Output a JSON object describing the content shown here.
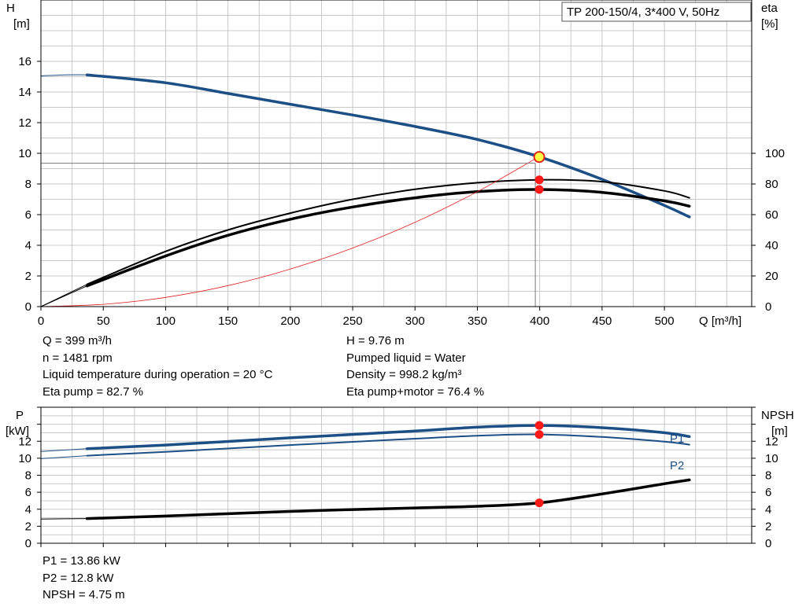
{
  "chart_data": [
    {
      "type": "line",
      "title": "TP 200-150/4, 3*400 V, 50Hz",
      "xlabel": "Q [m³/h]",
      "ylabel_left": [
        "H",
        "[m]"
      ],
      "ylabel_right": [
        "eta",
        "[%]"
      ],
      "xlim": [
        0,
        570
      ],
      "ylim": [
        0,
        20
      ],
      "ylim_right": [
        0,
        200
      ],
      "x_ticks": [
        0,
        50,
        100,
        150,
        200,
        250,
        300,
        350,
        400,
        450,
        500
      ],
      "y_ticks": [
        0,
        2,
        4,
        6,
        8,
        10,
        12,
        14,
        16
      ],
      "y_ticks_right": [
        0,
        20,
        40,
        60,
        80,
        100
      ],
      "grid": true,
      "series": [
        {
          "key": "H",
          "color": "#1c4f86",
          "axis": "left",
          "x": [
            0,
            20,
            37,
            100,
            150,
            200,
            250,
            300,
            350,
            400,
            450,
            500,
            520
          ],
          "values": [
            15.05,
            15.12,
            15.12,
            14.6,
            13.9,
            13.2,
            12.5,
            11.75,
            10.9,
            9.76,
            8.3,
            6.6,
            5.85
          ]
        },
        {
          "key": "eta_pump",
          "color": "#000000",
          "axis": "right",
          "x": [
            0,
            37,
            100,
            150,
            200,
            250,
            300,
            350,
            400,
            450,
            500,
            520
          ],
          "values": [
            0,
            14.5,
            36,
            50,
            61,
            70,
            76.5,
            80.8,
            82.7,
            81.5,
            75.5,
            71
          ]
        },
        {
          "key": "eta_total",
          "color": "#000000",
          "axis": "right",
          "x": [
            0,
            37,
            100,
            150,
            200,
            250,
            300,
            350,
            400,
            450,
            500,
            520
          ],
          "values": [
            0,
            13.5,
            33,
            46.5,
            57,
            65,
            71,
            75,
            76.4,
            74.5,
            69,
            65.5
          ]
        },
        {
          "key": "system",
          "color": "#e02020",
          "axis": "left",
          "x": [
            0,
            50,
            100,
            150,
            200,
            250,
            300,
            350,
            399
          ],
          "values": [
            0,
            0.15,
            0.6,
            1.37,
            2.45,
            3.82,
            5.5,
            7.5,
            9.76
          ]
        }
      ],
      "operating_point": {
        "q": 399,
        "h": 9.76,
        "eta_pump": 82.7,
        "eta_total": 76.4
      }
    },
    {
      "type": "line",
      "ylabel_left": [
        "P",
        "[kW]"
      ],
      "ylabel_right": [
        "NPSH",
        "[m]"
      ],
      "xlim": [
        0,
        570
      ],
      "ylim": [
        0,
        16
      ],
      "y_ticks": [
        0,
        2,
        4,
        6,
        8,
        10,
        12
      ],
      "y_ticks_right": [
        0,
        2,
        4,
        6,
        8,
        10,
        12
      ],
      "grid": true,
      "series": [
        {
          "key": "P1",
          "name": "P1",
          "color": "#1c4f86",
          "x": [
            0,
            37,
            100,
            200,
            300,
            350,
            400,
            450,
            500,
            520
          ],
          "values": [
            10.8,
            11.12,
            11.55,
            12.4,
            13.2,
            13.65,
            13.86,
            13.6,
            13.0,
            12.55
          ]
        },
        {
          "key": "P2",
          "name": "P2",
          "color": "#1c4f86",
          "x": [
            0,
            37,
            100,
            200,
            300,
            350,
            400,
            450,
            500,
            520
          ],
          "values": [
            9.95,
            10.3,
            10.75,
            11.55,
            12.3,
            12.65,
            12.8,
            12.5,
            11.95,
            11.6
          ]
        },
        {
          "key": "NPSH",
          "color": "#000000",
          "x": [
            0,
            37,
            100,
            200,
            300,
            350,
            400,
            450,
            500,
            520
          ],
          "values": [
            2.85,
            2.9,
            3.2,
            3.75,
            4.15,
            4.35,
            4.75,
            5.8,
            7.0,
            7.45
          ]
        }
      ],
      "operating_point": {
        "q": 399,
        "p1": 13.86,
        "p2": 12.8,
        "npsh": 4.75
      }
    }
  ],
  "info_top_left": [
    "Q = 399 m³/h",
    "n = 1481 rpm",
    "Liquid temperature during operation = 20 °C",
    "Eta pump = 82.7 %"
  ],
  "info_top_right": [
    "H = 9.76 m",
    "Pumped liquid = Water",
    "Density = 998.2 kg/m³",
    "Eta pump+motor = 76.4 %"
  ],
  "info_bottom": [
    "P1 = 13.86 kW",
    "P2 = 12.8 kW",
    "NPSH = 4.75 m"
  ]
}
